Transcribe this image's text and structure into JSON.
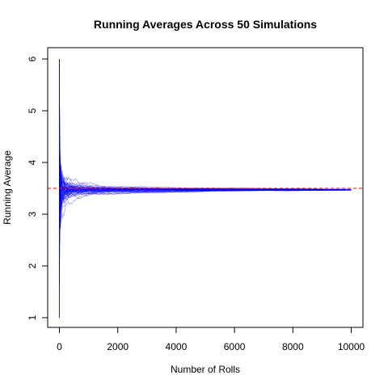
{
  "chart_data": {
    "type": "line",
    "title": "Running Averages Across 50 Simulations",
    "xlabel": "Number of Rolls",
    "ylabel": "Running Average",
    "xlim": [
      0,
      10000
    ],
    "ylim": [
      1,
      6
    ],
    "x_ticks": [
      "0",
      "2000",
      "4000",
      "6000",
      "8000",
      "10000"
    ],
    "y_ticks": [
      "1",
      "2",
      "3",
      "4",
      "5",
      "6"
    ],
    "grid": false,
    "series_count": 50,
    "rolls_per_simulation": 10000,
    "series_color": "#0000ff",
    "reference_line": {
      "y": 3.5,
      "color": "#ff0000",
      "style": "dashed"
    }
  }
}
